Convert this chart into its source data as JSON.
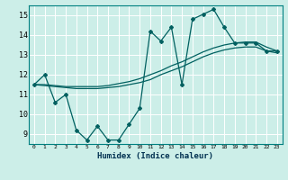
{
  "title": "",
  "xlabel": "Humidex (Indice chaleur)",
  "background_color": "#cceee8",
  "line_color": "#006060",
  "grid_color": "#ffffff",
  "xlim": [
    -0.5,
    23.5
  ],
  "ylim": [
    8.5,
    15.5
  ],
  "xticks": [
    0,
    1,
    2,
    3,
    4,
    5,
    6,
    7,
    8,
    9,
    10,
    11,
    12,
    13,
    14,
    15,
    16,
    17,
    18,
    19,
    20,
    21,
    22,
    23
  ],
  "yticks": [
    9,
    10,
    11,
    12,
    13,
    14,
    15
  ],
  "curve1_x": [
    0,
    1,
    2,
    3,
    4,
    5,
    6,
    7,
    8,
    9,
    10,
    11,
    12,
    13,
    14,
    15,
    16,
    17,
    18,
    19,
    20,
    21,
    22,
    23
  ],
  "curve1_y": [
    11.5,
    12.0,
    10.6,
    11.0,
    9.2,
    8.7,
    9.4,
    8.7,
    8.7,
    9.5,
    10.3,
    14.2,
    13.7,
    14.4,
    11.5,
    14.8,
    15.05,
    15.3,
    14.4,
    13.6,
    13.6,
    13.6,
    13.2,
    13.2
  ],
  "curve2_x": [
    0,
    1,
    2,
    3,
    4,
    5,
    6,
    7,
    8,
    9,
    10,
    11,
    12,
    13,
    14,
    15,
    16,
    17,
    18,
    19,
    20,
    21,
    22,
    23
  ],
  "curve2_y": [
    11.5,
    11.45,
    11.4,
    11.35,
    11.3,
    11.3,
    11.3,
    11.35,
    11.4,
    11.5,
    11.6,
    11.75,
    12.0,
    12.2,
    12.4,
    12.65,
    12.9,
    13.1,
    13.25,
    13.35,
    13.4,
    13.4,
    13.2,
    13.1
  ],
  "curve3_x": [
    0,
    1,
    2,
    3,
    4,
    5,
    6,
    7,
    8,
    9,
    10,
    11,
    12,
    13,
    14,
    15,
    16,
    17,
    18,
    19,
    20,
    21,
    22,
    23
  ],
  "curve3_y": [
    11.5,
    11.5,
    11.45,
    11.4,
    11.4,
    11.4,
    11.4,
    11.45,
    11.55,
    11.65,
    11.8,
    12.0,
    12.2,
    12.45,
    12.65,
    12.9,
    13.15,
    13.35,
    13.5,
    13.6,
    13.65,
    13.65,
    13.4,
    13.2
  ]
}
